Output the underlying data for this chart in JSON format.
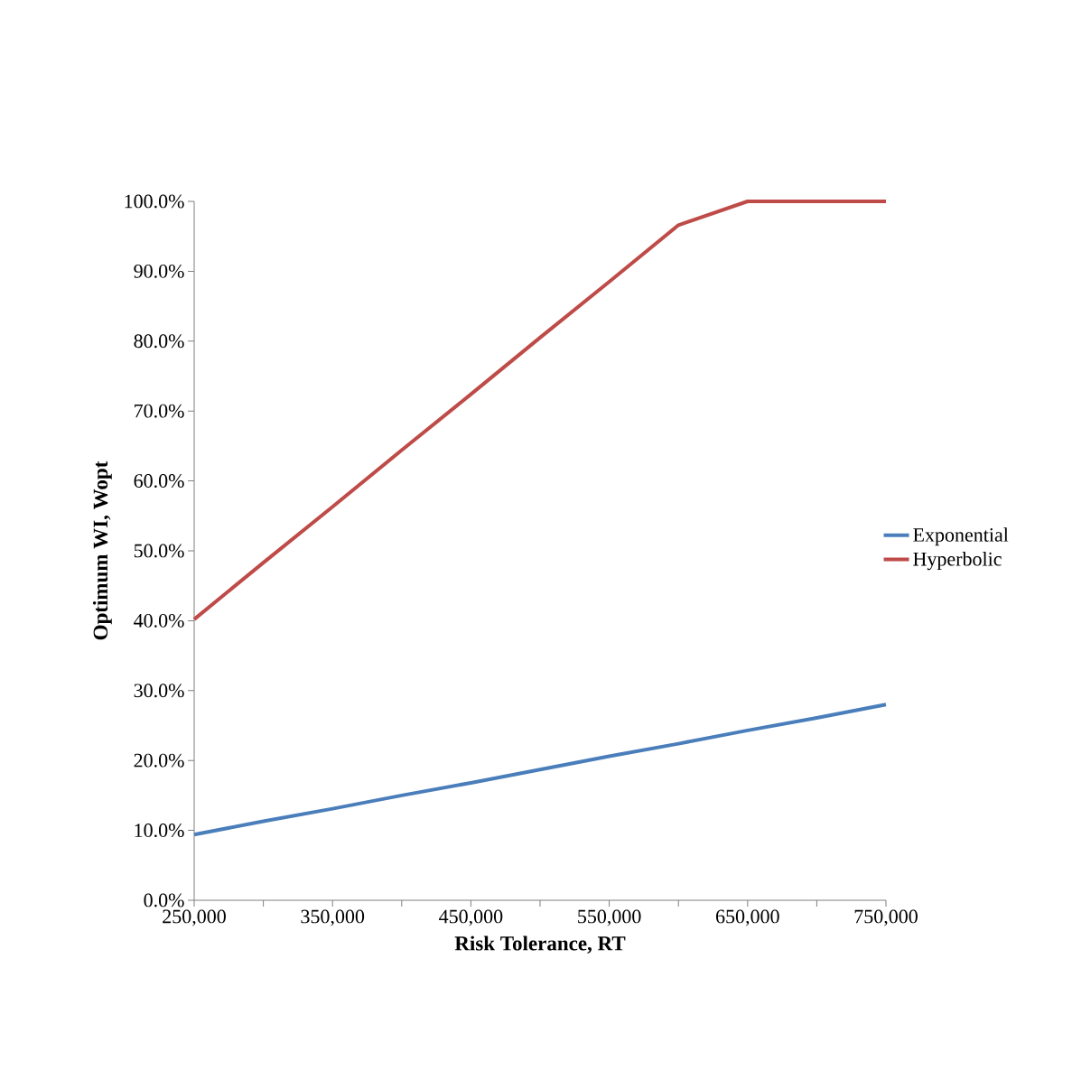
{
  "chart_data": {
    "type": "line",
    "xlabel": "Risk Tolerance, RT",
    "ylabel": "Optimum WI, Wopt",
    "x": [
      250000,
      300000,
      350000,
      400000,
      450000,
      500000,
      550000,
      600000,
      650000,
      700000,
      750000
    ],
    "series": [
      {
        "name": "Exponential",
        "color": "#4a7ebb",
        "values": [
          9.4,
          11.3,
          13.1,
          15.0,
          16.8,
          18.7,
          20.6,
          22.4,
          24.3,
          26.1,
          28.0
        ]
      },
      {
        "name": "Hyperbolic",
        "color": "#be4b48",
        "values": [
          40.2,
          48.3,
          56.3,
          64.4,
          72.4,
          80.5,
          88.5,
          96.6,
          100,
          100,
          100
        ]
      }
    ],
    "xlim": [
      250000,
      750000
    ],
    "ylim": [
      0,
      100
    ],
    "xticks": [
      {
        "value": 250000,
        "label": "250,000"
      },
      {
        "value": 300000,
        "label": null
      },
      {
        "value": 350000,
        "label": "350,000"
      },
      {
        "value": 400000,
        "label": null
      },
      {
        "value": 450000,
        "label": "450,000"
      },
      {
        "value": 500000,
        "label": null
      },
      {
        "value": 550000,
        "label": "550,000"
      },
      {
        "value": 600000,
        "label": null
      },
      {
        "value": 650000,
        "label": "650,000"
      },
      {
        "value": 700000,
        "label": null
      },
      {
        "value": 750000,
        "label": "750,000"
      }
    ],
    "yticks": [
      {
        "value": 0,
        "label": "0.0%"
      },
      {
        "value": 10,
        "label": "10.0%"
      },
      {
        "value": 20,
        "label": "20.0%"
      },
      {
        "value": 30,
        "label": "30.0%"
      },
      {
        "value": 40,
        "label": "40.0%"
      },
      {
        "value": 50,
        "label": "50.0%"
      },
      {
        "value": 60,
        "label": "60.0%"
      },
      {
        "value": 70,
        "label": "70.0%"
      },
      {
        "value": 80,
        "label": "80.0%"
      },
      {
        "value": 90,
        "label": "90.0%"
      },
      {
        "value": 100,
        "label": "100.0%"
      }
    ],
    "legend": "right"
  }
}
